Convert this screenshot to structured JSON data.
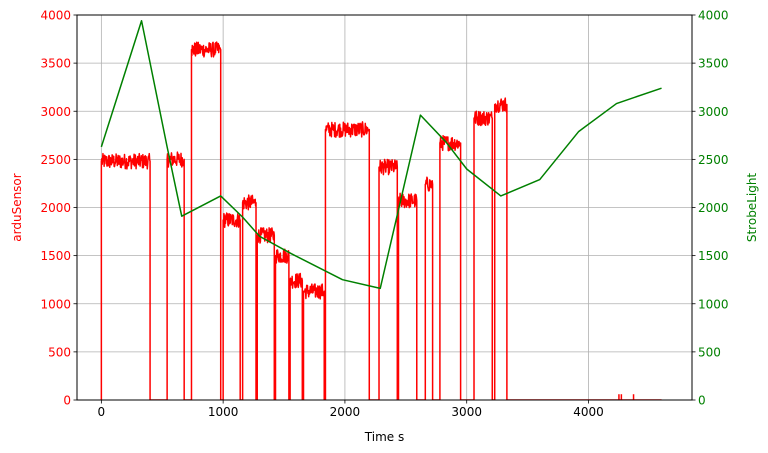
{
  "chart_data": {
    "type": "line",
    "title": "",
    "xlabel": "Time s",
    "xlim": [
      -200,
      4850
    ],
    "xticks": [
      0,
      1000,
      2000,
      3000,
      4000
    ],
    "grid": true,
    "axes": {
      "left": {
        "label": "arduSensor",
        "color": "#ff0000",
        "ylim": [
          0,
          4000
        ],
        "ticks": [
          0,
          500,
          1000,
          1500,
          2000,
          2500,
          3000,
          3500,
          4000
        ]
      },
      "right": {
        "label": "StrobeLight",
        "color": "#008000",
        "ylim": [
          0,
          4000
        ],
        "ticks": [
          0,
          500,
          1000,
          1500,
          2000,
          2500,
          3000,
          3500,
          4000
        ]
      }
    },
    "series": [
      {
        "axis": "left",
        "color": "#ff0000",
        "style": "noisy-step",
        "points": [
          [
            0,
            0
          ],
          [
            0,
            2480
          ],
          [
            400,
            2480
          ],
          [
            400,
            0
          ],
          [
            540,
            0
          ],
          [
            540,
            2500
          ],
          [
            680,
            2500
          ],
          [
            680,
            0
          ],
          [
            740,
            0
          ],
          [
            740,
            3640
          ],
          [
            980,
            3640
          ],
          [
            980,
            0
          ],
          [
            1000,
            0
          ],
          [
            1000,
            1870
          ],
          [
            1140,
            1870
          ],
          [
            1140,
            0
          ],
          [
            1160,
            0
          ],
          [
            1160,
            2050
          ],
          [
            1270,
            2050
          ],
          [
            1270,
            0
          ],
          [
            1280,
            0
          ],
          [
            1280,
            1710
          ],
          [
            1420,
            1710
          ],
          [
            1420,
            0
          ],
          [
            1430,
            0
          ],
          [
            1430,
            1500
          ],
          [
            1540,
            1500
          ],
          [
            1540,
            0
          ],
          [
            1550,
            0
          ],
          [
            1550,
            1240
          ],
          [
            1650,
            1240
          ],
          [
            1650,
            0
          ],
          [
            1660,
            0
          ],
          [
            1660,
            1130
          ],
          [
            1830,
            1130
          ],
          [
            1830,
            0
          ],
          [
            1840,
            0
          ],
          [
            1840,
            2810
          ],
          [
            2200,
            2810
          ],
          [
            2200,
            0
          ],
          [
            2280,
            0
          ],
          [
            2280,
            2420
          ],
          [
            2430,
            2420
          ],
          [
            2430,
            0
          ],
          [
            2440,
            0
          ],
          [
            2440,
            2070
          ],
          [
            2590,
            2070
          ],
          [
            2590,
            0
          ],
          [
            2660,
            0
          ],
          [
            2660,
            2240
          ],
          [
            2720,
            2240
          ],
          [
            2720,
            0
          ],
          [
            2780,
            0
          ],
          [
            2780,
            2670
          ],
          [
            2950,
            2670
          ],
          [
            2950,
            0
          ],
          [
            3060,
            0
          ],
          [
            3060,
            2930
          ],
          [
            3210,
            2930
          ],
          [
            3210,
            0
          ],
          [
            3230,
            0
          ],
          [
            3230,
            3070
          ],
          [
            3330,
            3070
          ],
          [
            3330,
            0
          ],
          [
            4600,
            0
          ]
        ],
        "noise": 160
      },
      {
        "axis": "right",
        "color": "#008000",
        "style": "line",
        "points": [
          [
            0,
            2630
          ],
          [
            330,
            3940
          ],
          [
            540,
            2630
          ],
          [
            660,
            1910
          ],
          [
            980,
            2120
          ],
          [
            1160,
            1900
          ],
          [
            1300,
            1700
          ],
          [
            1560,
            1520
          ],
          [
            1980,
            1250
          ],
          [
            2290,
            1160
          ],
          [
            2620,
            2960
          ],
          [
            2830,
            2680
          ],
          [
            3000,
            2400
          ],
          [
            3280,
            2120
          ],
          [
            3600,
            2290
          ],
          [
            3920,
            2790
          ],
          [
            4230,
            3080
          ],
          [
            4600,
            3240
          ]
        ]
      }
    ]
  }
}
